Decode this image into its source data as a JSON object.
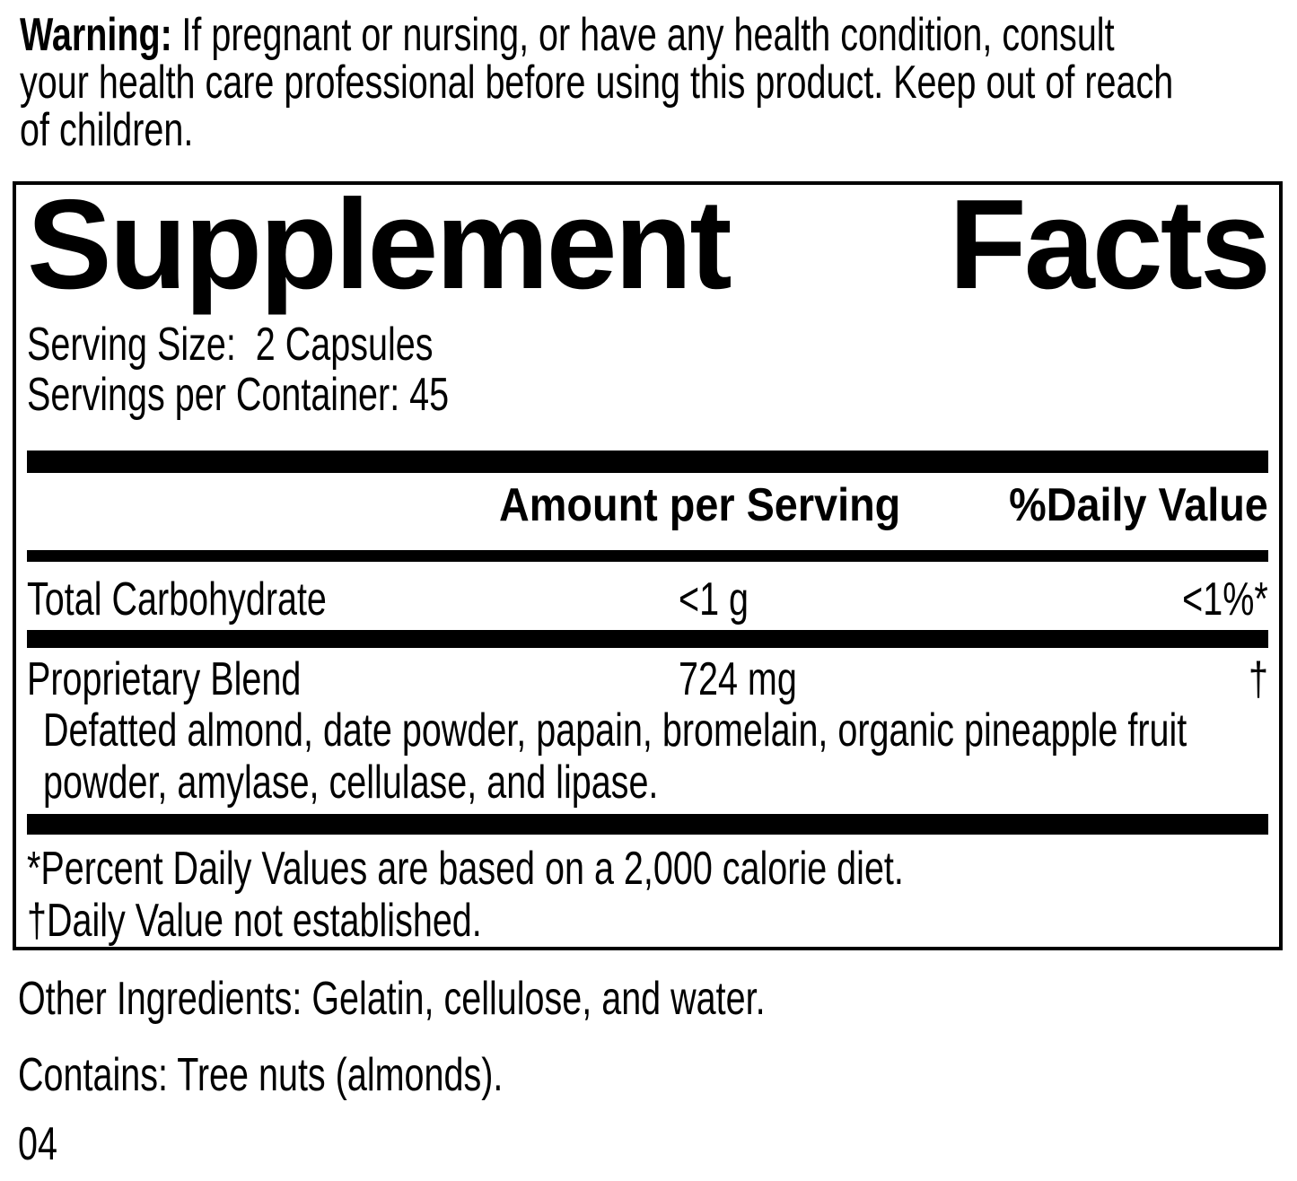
{
  "warning": {
    "label": "Warning:",
    "text": "If pregnant or nursing, or have any health condition, consult\nyour health care professional before using this product. Keep out of reach\nof children."
  },
  "panel": {
    "title_word1": "Supplement",
    "title_word2": "Facts",
    "serving_size": "Serving Size:  2 Capsules",
    "servings_per_container": "Servings per Container: 45",
    "header": {
      "amount": "Amount per Serving",
      "daily_value": "%Daily Value"
    },
    "rows": [
      {
        "name": "Total Carbohydrate",
        "amount": "<1 g",
        "daily_value": "<1%*"
      },
      {
        "name": "Proprietary Blend",
        "amount": "724 mg",
        "daily_value": "†",
        "description": "Defatted almond, date powder, papain, bromelain, organic pineapple fruit\npowder, amylase, cellulase, and lipase."
      }
    ],
    "footnotes": [
      "*Percent Daily Values are based on a 2,000 calorie diet.",
      "†Daily Value not established."
    ]
  },
  "other_ingredients": "Other Ingredients: Gelatin, cellulose, and water.",
  "contains": "Contains: Tree nuts (almonds).",
  "code": "04",
  "colors": {
    "text": "#000000",
    "background": "#ffffff"
  }
}
